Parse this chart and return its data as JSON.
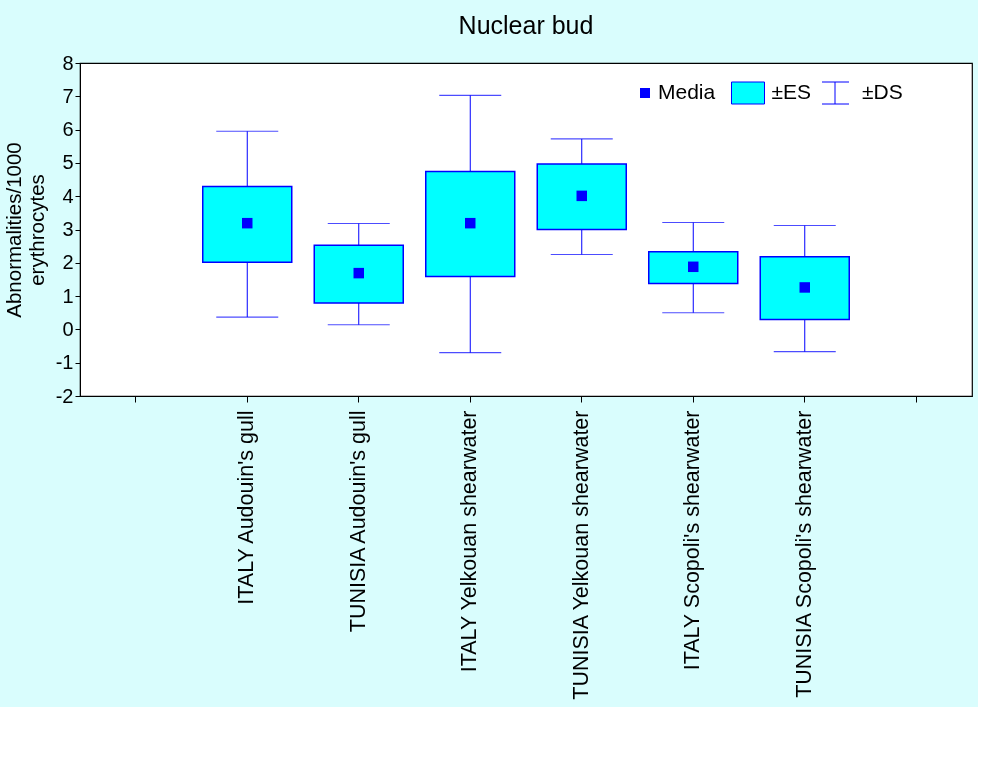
{
  "chart_data": {
    "type": "box",
    "title": "Nuclear bud",
    "ylabel": "Abnormalities/1000\nerythrocytes",
    "categories": [
      null,
      "ITALY Audouin's gull",
      "TUNISIA Audouin's gull",
      "ITALY Yelkouan shearwater",
      "TUNISIA Yelkouan shearwater",
      "ITALY Scopoli's shearwater",
      "TUNISIA Scopoli's shearwater",
      null
    ],
    "ylim": [
      -2,
      8
    ],
    "yticks": [
      -2,
      -1,
      0,
      1,
      2,
      3,
      4,
      5,
      6,
      7,
      8
    ],
    "grid": false,
    "legend": "top right",
    "series": [
      {
        "name": "Media",
        "type": "scatter",
        "marker": "square",
        "color": "#0000ff",
        "values": [
          null,
          3.19,
          1.69,
          3.19,
          4.01,
          1.88,
          1.26,
          null
        ]
      },
      {
        "name": "±ES",
        "color": "#00ffff",
        "boxes": [
          null,
          {
            "low": 0.37,
            "q1": 2.02,
            "q3": 4.29,
            "high": 5.95
          },
          {
            "low": 0.14,
            "q1": 0.79,
            "q3": 2.53,
            "high": 3.18
          },
          {
            "low": -0.7,
            "q1": 1.59,
            "q3": 4.74,
            "high": 7.03
          },
          {
            "low": 2.25,
            "q1": 3.0,
            "q3": 4.97,
            "high": 5.72
          },
          {
            "low": 0.5,
            "q1": 1.38,
            "q3": 2.33,
            "high": 3.21
          },
          {
            "low": -0.67,
            "q1": 0.3,
            "q3": 2.18,
            "high": 3.12
          },
          null
        ]
      }
    ],
    "annotations": [
      "±DS"
    ]
  }
}
